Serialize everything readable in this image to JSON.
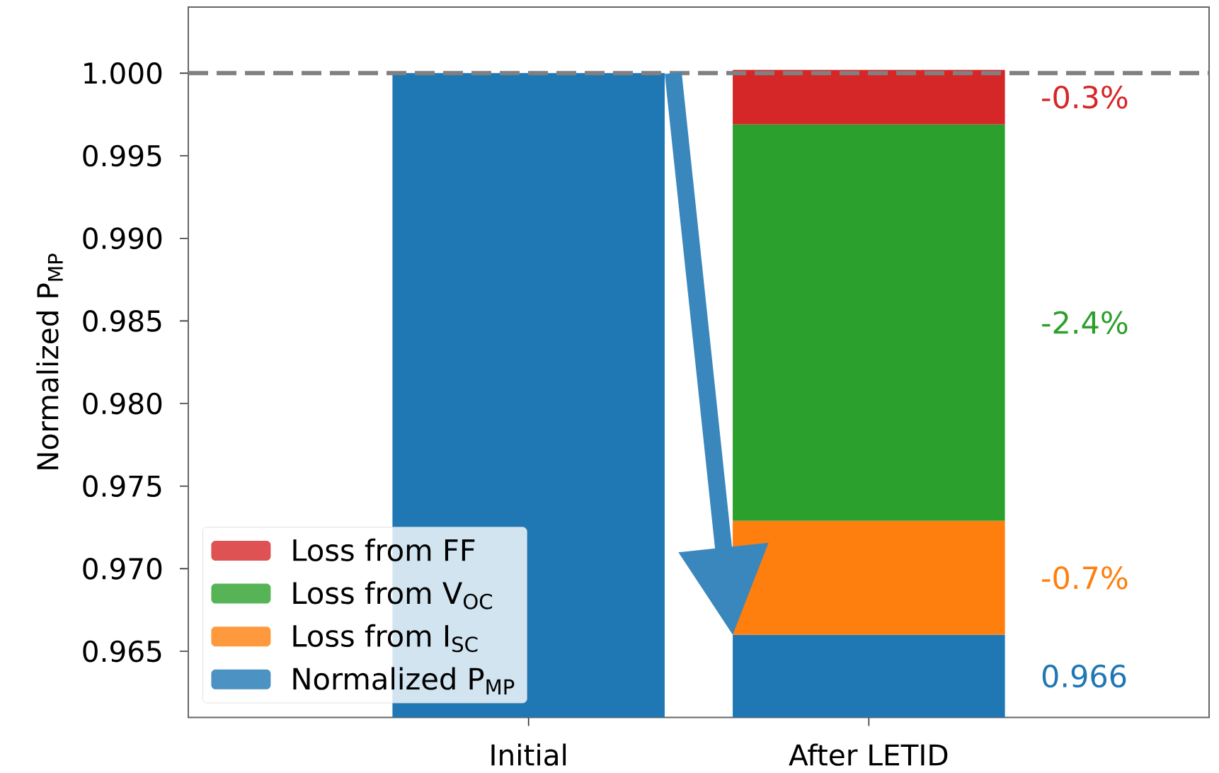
{
  "chart_data": {
    "type": "bar",
    "stacked": true,
    "ylabel": "Normalized P$_{MP}$",
    "categories": [
      "Initial",
      "After LETID"
    ],
    "series": [
      {
        "name": "Normalized P$_{MP}$",
        "color": "#1f77b4",
        "values": [
          1.0,
          0.966
        ]
      },
      {
        "name": "Loss from I$_{SC}$",
        "color": "#ff7f0e",
        "base": [
          null,
          0.966
        ],
        "values": [
          null,
          0.0069
        ]
      },
      {
        "name": "Loss from V$_{OC}$",
        "color": "#2ca02c",
        "base": [
          null,
          0.9729
        ],
        "values": [
          null,
          0.024
        ]
      },
      {
        "name": "Loss from FF",
        "color": "#d62728",
        "base": [
          null,
          0.9969
        ],
        "values": [
          null,
          0.0033
        ]
      }
    ],
    "annotations": [
      "-0.3%",
      "-2.4%",
      "-0.7%",
      "0.966"
    ],
    "ylim": [
      0.961,
      1.004
    ],
    "yticks": [
      {
        "value": 0.965,
        "label": "0.965"
      },
      {
        "value": 0.97,
        "label": "0.970"
      },
      {
        "value": 0.975,
        "label": "0.975"
      },
      {
        "value": 0.98,
        "label": "0.980"
      },
      {
        "value": 0.985,
        "label": "0.985"
      },
      {
        "value": 0.99,
        "label": "0.990"
      },
      {
        "value": 0.995,
        "label": "0.995"
      },
      {
        "value": 1.0,
        "label": "1.000"
      }
    ],
    "ref_lines": [
      {
        "axis": "y",
        "value": 1.0,
        "color": "#808080",
        "line_style": "dashed"
      }
    ],
    "legend": "bottom left"
  }
}
